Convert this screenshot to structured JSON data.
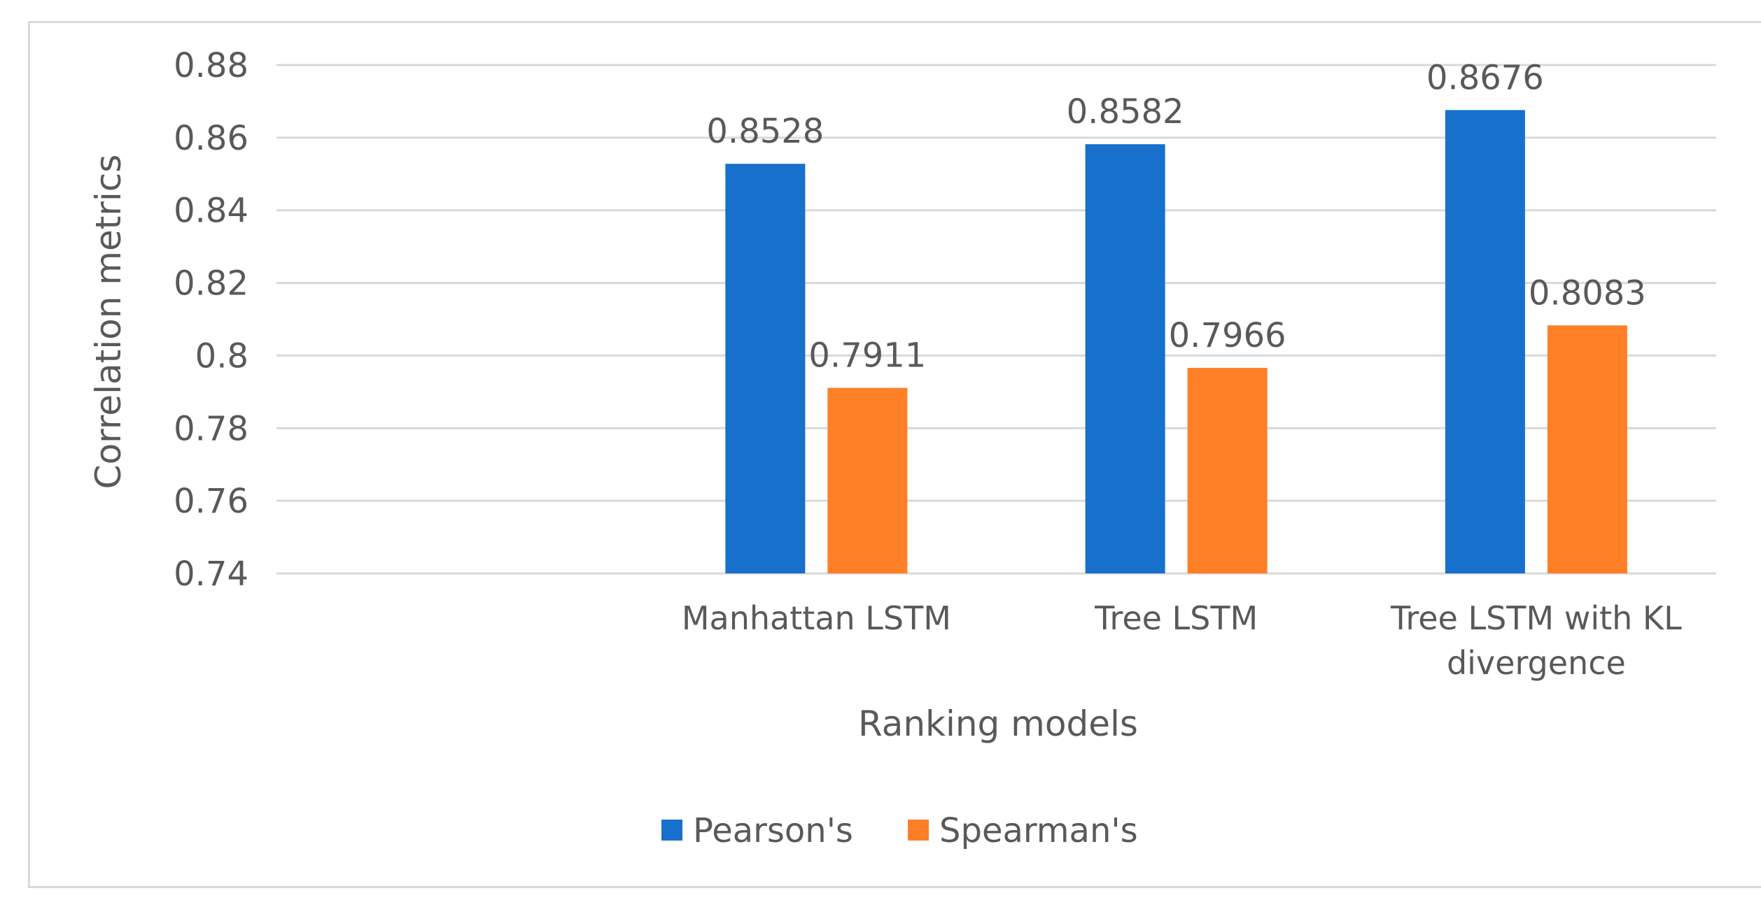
{
  "chart_data": {
    "type": "bar",
    "title": "",
    "xlabel": "Ranking models",
    "ylabel": "Correlation metrics",
    "categories": [
      {
        "key": "blank",
        "lines": []
      },
      {
        "key": "manhattan",
        "lines": [
          "Manhattan LSTM"
        ]
      },
      {
        "key": "tree",
        "lines": [
          "Tree LSTM"
        ]
      },
      {
        "key": "tree-kl",
        "lines": [
          "Tree LSTM with KL",
          "divergence"
        ]
      }
    ],
    "series": [
      {
        "name": "Pearson's",
        "color": "#1670CC",
        "values": [
          null,
          0.8528,
          0.8582,
          0.8676
        ],
        "labels": [
          "",
          "0.8528",
          "0.8582",
          "0.8676"
        ]
      },
      {
        "name": "Spearman's",
        "color": "#FF7F27",
        "values": [
          null,
          0.7911,
          0.7966,
          0.8083
        ],
        "labels": [
          "",
          "0.7911",
          "0.7966",
          "0.8083"
        ]
      }
    ],
    "ylim": [
      0.74,
      0.88
    ],
    "yticks": [
      {
        "value": 0.74,
        "label": "0.74"
      },
      {
        "value": 0.76,
        "label": "0.76"
      },
      {
        "value": 0.78,
        "label": "0.78"
      },
      {
        "value": 0.8,
        "label": "0.8"
      },
      {
        "value": 0.82,
        "label": "0.82"
      },
      {
        "value": 0.84,
        "label": "0.84"
      },
      {
        "value": 0.86,
        "label": "0.86"
      },
      {
        "value": 0.88,
        "label": "0.88"
      }
    ],
    "grid": true,
    "legend_position": "bottom-center",
    "colors": {
      "grid": "#d9d9d9",
      "text": "#595959"
    }
  }
}
